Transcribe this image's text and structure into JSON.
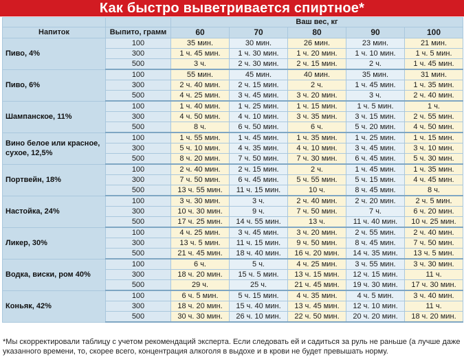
{
  "title": "Как быстро выветривается спиртное*",
  "headers": {
    "drink": "Напиток",
    "amount": "Выпито, грамм",
    "weight": "Ваш вес, кг",
    "weights": [
      "60",
      "70",
      "80",
      "90",
      "100"
    ]
  },
  "drinks": [
    {
      "name": "Пиво, 4%",
      "rows": [
        {
          "amount": "100",
          "values": [
            "35 мин.",
            "30 мин.",
            "26 мин.",
            "23 мин.",
            "21 мин."
          ]
        },
        {
          "amount": "300",
          "values": [
            "1 ч. 45 мин.",
            "1 ч. 30 мин.",
            "1 ч. 20 мин.",
            "1 ч. 10 мин.",
            "1 ч. 5 мин."
          ]
        },
        {
          "amount": "500",
          "values": [
            "3 ч.",
            "2 ч. 30 мин.",
            "2 ч. 15 мин.",
            "2 ч.",
            "1 ч. 45 мин."
          ]
        }
      ]
    },
    {
      "name": "Пиво, 6%",
      "rows": [
        {
          "amount": "100",
          "values": [
            "55 мин.",
            "45 мин.",
            "40 мин.",
            "35 мин.",
            "31 мин."
          ]
        },
        {
          "amount": "300",
          "values": [
            "2 ч. 40 мин.",
            "2 ч. 15 мин.",
            "2 ч.",
            "1 ч. 45 мин.",
            "1 ч. 35 мин."
          ]
        },
        {
          "amount": "500",
          "values": [
            "4 ч. 25 мин.",
            "3 ч. 45 мин.",
            "3 ч. 20 мин.",
            "3 ч.",
            "2 ч. 40 мин."
          ]
        }
      ]
    },
    {
      "name": "Шампанское, 11%",
      "rows": [
        {
          "amount": "100",
          "values": [
            "1 ч. 40 мин.",
            "1 ч. 25 мин.",
            "1 ч. 15 мин.",
            "1 ч. 5 мин.",
            "1 ч."
          ]
        },
        {
          "amount": "300",
          "values": [
            "4 ч. 50 мин.",
            "4 ч. 10 мин.",
            "3 ч. 35 мин.",
            "3 ч. 15 мин.",
            "2 ч. 55 мин."
          ]
        },
        {
          "amount": "500",
          "values": [
            "8 ч.",
            "6 ч. 50 мин.",
            "6 ч.",
            "5 ч. 20 мин.",
            "4 ч. 50 мин."
          ]
        }
      ]
    },
    {
      "name": "Вино белое или красное, сухое, 12,5%",
      "rows": [
        {
          "amount": "100",
          "values": [
            "1 ч. 55 мин.",
            "1 ч. 45 мин.",
            "1 ч. 35 мин.",
            "1 ч. 25 мин.",
            "1 ч. 15 мин."
          ]
        },
        {
          "amount": "300",
          "values": [
            "5 ч. 10 мин.",
            "4 ч. 35 мин.",
            "4 ч. 10 мин.",
            "3 ч. 45 мин.",
            "3 ч. 10 мин."
          ]
        },
        {
          "amount": "500",
          "values": [
            "8 ч. 20 мин.",
            "7 ч. 50 мин.",
            "7 ч. 30 мин.",
            "6 ч. 45 мин.",
            "5 ч. 30 мин."
          ]
        }
      ]
    },
    {
      "name": "Портвейн, 18%",
      "rows": [
        {
          "amount": "100",
          "values": [
            "2 ч. 40 мин.",
            "2 ч. 15 мин.",
            "2 ч.",
            "1 ч. 45 мин.",
            "1 ч. 35 мин."
          ]
        },
        {
          "amount": "300",
          "values": [
            "7 ч. 50 мин.",
            "6 ч. 45 мин.",
            "5 ч. 55 мин.",
            "5 ч. 15 мин.",
            "4 ч. 45 мин."
          ]
        },
        {
          "amount": "500",
          "values": [
            "13 ч. 55 мин.",
            "11 ч. 15 мин.",
            "10 ч.",
            "8 ч. 45 мин.",
            "8 ч."
          ]
        }
      ]
    },
    {
      "name": "Настойка, 24%",
      "rows": [
        {
          "amount": "100",
          "values": [
            "3 ч. 30 мин.",
            "3 ч.",
            "2 ч. 40 мин.",
            "2 ч. 20 мин.",
            "2 ч. 5 мин."
          ]
        },
        {
          "amount": "300",
          "values": [
            "10 ч. 30 мин.",
            "9 ч.",
            "7 ч. 50 мин.",
            "7 ч.",
            "6 ч. 20 мин."
          ]
        },
        {
          "amount": "500",
          "values": [
            "17 ч. 25 мин.",
            "14 ч. 55 мин.",
            "13 ч.",
            "11 ч. 40 мин.",
            "10 ч. 25 мин."
          ]
        }
      ]
    },
    {
      "name": "Ликер, 30%",
      "rows": [
        {
          "amount": "100",
          "values": [
            "4 ч. 25 мин.",
            "3 ч. 45 мин.",
            "3 ч. 20 мин.",
            "2 ч. 55 мин.",
            "2 ч. 40 мин."
          ]
        },
        {
          "amount": "300",
          "values": [
            "13 ч. 5 мин.",
            "11 ч. 15 мин.",
            "9 ч. 50 мин.",
            "8 ч. 45 мин.",
            "7 ч. 50 мин."
          ]
        },
        {
          "amount": "500",
          "values": [
            "21 ч. 45 мин.",
            "18 ч. 40 мин.",
            "16 ч. 20 мин.",
            "14 ч. 35 мин.",
            "13 ч. 5 мин."
          ]
        }
      ]
    },
    {
      "name": "Водка, виски, ром 40%",
      "rows": [
        {
          "amount": "100",
          "values": [
            "6 ч.",
            "5 ч.",
            "4 ч. 25 мин.",
            "3 ч. 55 мин.",
            "3 ч. 30 мин."
          ]
        },
        {
          "amount": "300",
          "values": [
            "18 ч. 20 мин.",
            "15 ч. 5 мин.",
            "13 ч. 15 мин.",
            "12 ч. 15 мин.",
            "11 ч."
          ]
        },
        {
          "amount": "500",
          "values": [
            "29 ч.",
            "25 ч.",
            "21 ч. 45 мин.",
            "19 ч. 30 мин.",
            "17 ч. 30 мин."
          ]
        }
      ]
    },
    {
      "name": "Коньяк, 42%",
      "rows": [
        {
          "amount": "100",
          "values": [
            "6 ч. 5 мин.",
            "5 ч. 15 мин.",
            "4 ч. 35 мин.",
            "4 ч. 5 мин.",
            "3 ч. 40 мин."
          ]
        },
        {
          "amount": "300",
          "values": [
            "18 ч. 20 мин.",
            "15 ч. 40 мин.",
            "13 ч. 45 мин.",
            "12 ч. 10 мин.",
            "11 ч."
          ]
        },
        {
          "amount": "500",
          "values": [
            "30 ч. 30 мин.",
            "26 ч. 10 мин.",
            "22 ч. 50 мин.",
            "20 ч. 20 мин.",
            "18 ч. 20 мин."
          ]
        }
      ]
    }
  ],
  "footnote": [
    "*Мы скорректировали таблицу с учетом рекомендаций эксперта. Если следовать ей и садиться за руль не раньше (а лучше даже позже)",
    "указанного времени, то, скорее всего, концентрация алкоголя в выдохе и в крови не будет превышать норму."
  ]
}
